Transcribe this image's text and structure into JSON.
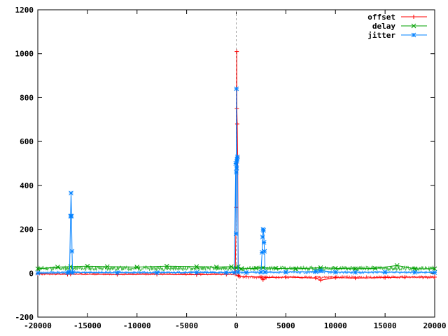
{
  "chart_data": {
    "type": "line",
    "xlim": [
      -20000,
      20000
    ],
    "ylim": [
      -200,
      1200
    ],
    "x_ticks": [
      -20000,
      -15000,
      -10000,
      -5000,
      0,
      5000,
      10000,
      15000,
      20000
    ],
    "y_ticks": [
      -200,
      0,
      200,
      400,
      600,
      800,
      1000,
      1200
    ],
    "x_tick_labels": [
      "-20000",
      "-15000",
      "-10000",
      "-5000",
      "0",
      "5000",
      "10000",
      "15000",
      "20000"
    ],
    "y_tick_labels": [
      "-200",
      "0",
      "200",
      "400",
      "600",
      "800",
      "1000",
      "1200"
    ],
    "vertical_reference_x": 0,
    "grid": false,
    "legend_position": "top-right",
    "series": [
      {
        "name": "offset",
        "color": "#ff0000",
        "marker": "plus",
        "points": [
          [
            -20000,
            -3
          ],
          [
            -17000,
            -5
          ],
          [
            -16700,
            -4
          ],
          [
            -12000,
            -6
          ],
          [
            -8000,
            -5
          ],
          [
            -4000,
            -7
          ],
          [
            -1000,
            -5
          ],
          [
            -100,
            -4
          ],
          [
            0,
            300
          ],
          [
            50,
            1010
          ],
          [
            60,
            750
          ],
          [
            100,
            680
          ],
          [
            150,
            530
          ],
          [
            200,
            -10
          ],
          [
            300,
            -15
          ],
          [
            1000,
            -15
          ],
          [
            2500,
            -18
          ],
          [
            2700,
            -30
          ],
          [
            3000,
            -20
          ],
          [
            5000,
            -18
          ],
          [
            8000,
            -22
          ],
          [
            8500,
            -32
          ],
          [
            10000,
            -20
          ],
          [
            12000,
            -22
          ],
          [
            15000,
            -20
          ],
          [
            17000,
            -18
          ],
          [
            20000,
            -18
          ]
        ]
      },
      {
        "name": "delay",
        "color": "#00a000",
        "marker": "x",
        "points": [
          [
            -20000,
            20
          ],
          [
            -18000,
            28
          ],
          [
            -16700,
            30
          ],
          [
            -15000,
            32
          ],
          [
            -13000,
            30
          ],
          [
            -10000,
            28
          ],
          [
            -7000,
            32
          ],
          [
            -4000,
            30
          ],
          [
            -2000,
            28
          ],
          [
            -500,
            30
          ],
          [
            0,
            25
          ],
          [
            200,
            30
          ],
          [
            500,
            20
          ],
          [
            2000,
            22
          ],
          [
            2700,
            25
          ],
          [
            4000,
            22
          ],
          [
            6000,
            20
          ],
          [
            8500,
            25
          ],
          [
            10000,
            22
          ],
          [
            12000,
            20
          ],
          [
            14000,
            22
          ],
          [
            16200,
            35
          ],
          [
            18000,
            20
          ],
          [
            20000,
            20
          ]
        ]
      },
      {
        "name": "jitter",
        "color": "#0080ff",
        "marker": "star",
        "points": [
          [
            -20000,
            0
          ],
          [
            -17000,
            2
          ],
          [
            -16800,
            5
          ],
          [
            -16700,
            260
          ],
          [
            -16650,
            365
          ],
          [
            -16600,
            260
          ],
          [
            -16550,
            100
          ],
          [
            -16500,
            3
          ],
          [
            -12000,
            2
          ],
          [
            -8000,
            2
          ],
          [
            -4000,
            3
          ],
          [
            -1000,
            2
          ],
          [
            -200,
            3
          ],
          [
            -50,
            500
          ],
          [
            -20,
            180
          ],
          [
            0,
            460
          ],
          [
            20,
            840
          ],
          [
            40,
            480
          ],
          [
            60,
            510
          ],
          [
            80,
            520
          ],
          [
            120,
            530
          ],
          [
            200,
            5
          ],
          [
            1000,
            3
          ],
          [
            2500,
            5
          ],
          [
            2600,
            95
          ],
          [
            2650,
            165
          ],
          [
            2700,
            200
          ],
          [
            2750,
            195
          ],
          [
            2800,
            140
          ],
          [
            2850,
            100
          ],
          [
            2900,
            5
          ],
          [
            5000,
            5
          ],
          [
            8000,
            8
          ],
          [
            8500,
            12
          ],
          [
            10000,
            5
          ],
          [
            12000,
            4
          ],
          [
            15000,
            5
          ],
          [
            18000,
            4
          ],
          [
            20000,
            3
          ]
        ]
      }
    ]
  }
}
